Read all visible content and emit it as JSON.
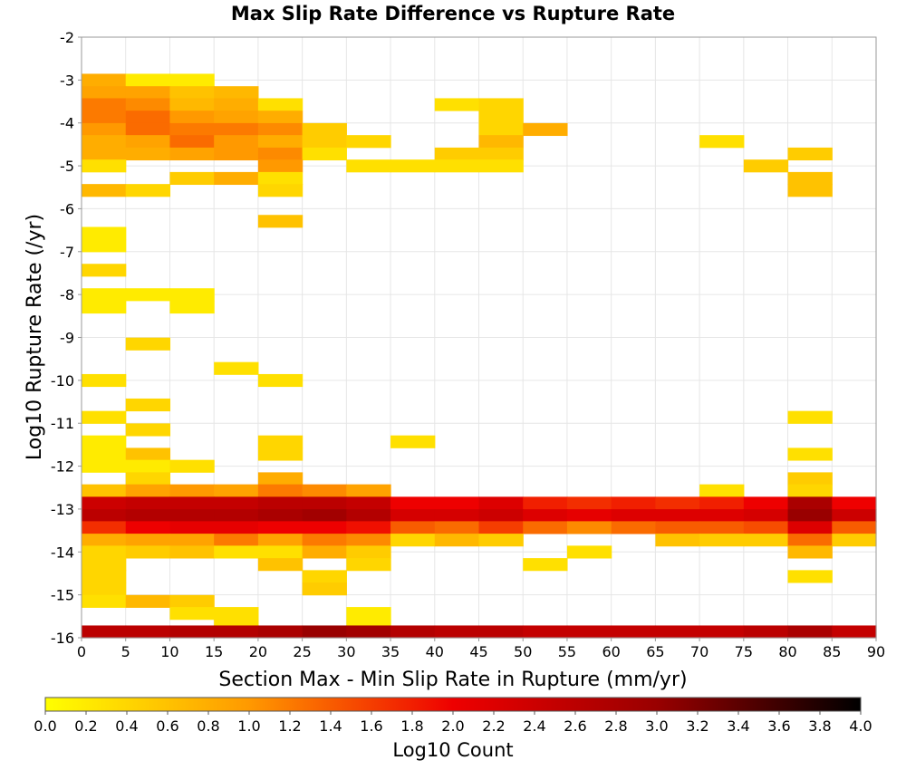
{
  "chart_data": {
    "type": "heatmap",
    "title": "Max Slip Rate Difference vs Rupture Rate",
    "xlabel": "Section Max - Min Slip Rate in Rupture (mm/yr)",
    "ylabel": "Log10 Rupture Rate (/yr)",
    "xlim": [
      0,
      90
    ],
    "ylim": [
      -16,
      -2
    ],
    "x_bin_width": 5,
    "y_bin_width": 0.286,
    "xticks": [
      "0",
      "5",
      "10",
      "15",
      "20",
      "25",
      "30",
      "35",
      "40",
      "45",
      "50",
      "55",
      "60",
      "65",
      "70",
      "75",
      "80",
      "85",
      "90"
    ],
    "yticks": [
      "-2",
      "-3",
      "-4",
      "-5",
      "-6",
      "-7",
      "-8",
      "-9",
      "-10",
      "-11",
      "-12",
      "-13",
      "-14",
      "-15",
      "-16"
    ],
    "grid": true,
    "colorbar": {
      "label": "Log10 Count",
      "range": [
        0,
        4
      ],
      "ticks": [
        "0.0",
        "0.2",
        "0.4",
        "0.6",
        "0.8",
        "1.0",
        "1.2",
        "1.4",
        "1.6",
        "1.8",
        "2.0",
        "2.2",
        "2.4",
        "2.6",
        "2.8",
        "3.0",
        "3.2",
        "3.4",
        "3.6",
        "3.8",
        "4.0"
      ],
      "stops": [
        "#ffff00",
        "#ff9900",
        "#ee0000",
        "#990000",
        "#000000"
      ]
    },
    "cells_columns": [
      "x_start",
      "y_bottom",
      "log10_count"
    ],
    "cells": [
      [
        0,
        -3.14,
        0.8
      ],
      [
        5,
        -3.14,
        0.2
      ],
      [
        10,
        -3.14,
        0.2
      ],
      [
        0,
        -3.43,
        0.9
      ],
      [
        5,
        -3.43,
        0.9
      ],
      [
        10,
        -3.43,
        0.6
      ],
      [
        15,
        -3.43,
        0.7
      ],
      [
        0,
        -3.71,
        1.2
      ],
      [
        5,
        -3.71,
        1.1
      ],
      [
        10,
        -3.71,
        0.7
      ],
      [
        15,
        -3.71,
        0.8
      ],
      [
        20,
        -3.71,
        0.3
      ],
      [
        40,
        -3.71,
        0.3
      ],
      [
        45,
        -3.71,
        0.4
      ],
      [
        0,
        -4.0,
        1.2
      ],
      [
        5,
        -4.0,
        1.3
      ],
      [
        10,
        -4.0,
        1.0
      ],
      [
        15,
        -4.0,
        0.9
      ],
      [
        20,
        -4.0,
        0.8
      ],
      [
        45,
        -4.0,
        0.4
      ],
      [
        0,
        -4.29,
        1.0
      ],
      [
        5,
        -4.29,
        1.3
      ],
      [
        10,
        -4.29,
        1.2
      ],
      [
        15,
        -4.29,
        1.2
      ],
      [
        20,
        -4.29,
        1.1
      ],
      [
        25,
        -4.29,
        0.5
      ],
      [
        45,
        -4.29,
        0.4
      ],
      [
        50,
        -4.29,
        0.8
      ],
      [
        0,
        -4.57,
        0.8
      ],
      [
        5,
        -4.57,
        0.9
      ],
      [
        10,
        -4.57,
        1.3
      ],
      [
        15,
        -4.57,
        1.0
      ],
      [
        20,
        -4.57,
        0.8
      ],
      [
        25,
        -4.57,
        0.5
      ],
      [
        30,
        -4.57,
        0.4
      ],
      [
        45,
        -4.57,
        0.7
      ],
      [
        70,
        -4.57,
        0.3
      ],
      [
        0,
        -4.86,
        0.8
      ],
      [
        5,
        -4.86,
        0.8
      ],
      [
        10,
        -4.86,
        0.9
      ],
      [
        15,
        -4.86,
        1.0
      ],
      [
        20,
        -4.86,
        1.1
      ],
      [
        25,
        -4.86,
        0.3
      ],
      [
        40,
        -4.86,
        0.5
      ],
      [
        45,
        -4.86,
        0.5
      ],
      [
        80,
        -4.86,
        0.5
      ],
      [
        0,
        -5.14,
        0.3
      ],
      [
        20,
        -5.14,
        1.0
      ],
      [
        30,
        -5.14,
        0.3
      ],
      [
        35,
        -5.14,
        0.3
      ],
      [
        40,
        -5.14,
        0.3
      ],
      [
        45,
        -5.14,
        0.3
      ],
      [
        75,
        -5.14,
        0.5
      ],
      [
        10,
        -5.43,
        0.5
      ],
      [
        15,
        -5.43,
        0.8
      ],
      [
        20,
        -5.43,
        0.3
      ],
      [
        80,
        -5.43,
        0.6
      ],
      [
        0,
        -5.71,
        0.7
      ],
      [
        5,
        -5.71,
        0.4
      ],
      [
        20,
        -5.71,
        0.4
      ],
      [
        80,
        -5.71,
        0.6
      ],
      [
        20,
        -6.43,
        0.6
      ],
      [
        0,
        -6.71,
        0.2
      ],
      [
        0,
        -7.0,
        0.2
      ],
      [
        0,
        -7.57,
        0.4
      ],
      [
        0,
        -8.14,
        0.2
      ],
      [
        5,
        -8.14,
        0.2
      ],
      [
        10,
        -8.14,
        0.2
      ],
      [
        0,
        -8.43,
        0.2
      ],
      [
        10,
        -8.43,
        0.2
      ],
      [
        5,
        -9.29,
        0.4
      ],
      [
        15,
        -9.86,
        0.3
      ],
      [
        0,
        -10.14,
        0.3
      ],
      [
        20,
        -10.14,
        0.3
      ],
      [
        5,
        -10.71,
        0.4
      ],
      [
        0,
        -11.0,
        0.3
      ],
      [
        80,
        -11.0,
        0.3
      ],
      [
        5,
        -11.29,
        0.4
      ],
      [
        0,
        -11.57,
        0.2
      ],
      [
        20,
        -11.57,
        0.4
      ],
      [
        35,
        -11.57,
        0.3
      ],
      [
        0,
        -11.86,
        0.2
      ],
      [
        5,
        -11.86,
        0.6
      ],
      [
        20,
        -11.86,
        0.4
      ],
      [
        80,
        -11.86,
        0.3
      ],
      [
        0,
        -12.14,
        0.2
      ],
      [
        5,
        -12.14,
        0.2
      ],
      [
        10,
        -12.14,
        0.3
      ],
      [
        5,
        -12.43,
        0.4
      ],
      [
        20,
        -12.43,
        0.8
      ],
      [
        80,
        -12.43,
        0.5
      ],
      [
        0,
        -12.71,
        0.6
      ],
      [
        5,
        -12.71,
        0.9
      ],
      [
        10,
        -12.71,
        1.0
      ],
      [
        15,
        -12.71,
        0.9
      ],
      [
        20,
        -12.71,
        1.2
      ],
      [
        25,
        -12.71,
        1.1
      ],
      [
        30,
        -12.71,
        0.9
      ],
      [
        70,
        -12.71,
        0.3
      ],
      [
        80,
        -12.71,
        0.4
      ],
      [
        0,
        -13.0,
        2.4
      ],
      [
        5,
        -13.0,
        2.5
      ],
      [
        10,
        -13.0,
        2.5
      ],
      [
        15,
        -13.0,
        2.5
      ],
      [
        20,
        -13.0,
        2.6
      ],
      [
        25,
        -13.0,
        2.6
      ],
      [
        30,
        -13.0,
        2.5
      ],
      [
        35,
        -13.0,
        2.0
      ],
      [
        40,
        -13.0,
        2.0
      ],
      [
        45,
        -13.0,
        2.2
      ],
      [
        50,
        -13.0,
        1.8
      ],
      [
        55,
        -13.0,
        1.7
      ],
      [
        60,
        -13.0,
        1.8
      ],
      [
        65,
        -13.0,
        1.7
      ],
      [
        70,
        -13.0,
        1.8
      ],
      [
        75,
        -13.0,
        2.0
      ],
      [
        80,
        -13.0,
        2.8
      ],
      [
        85,
        -13.0,
        2.0
      ],
      [
        0,
        -13.29,
        2.6
      ],
      [
        5,
        -13.29,
        2.7
      ],
      [
        10,
        -13.29,
        2.7
      ],
      [
        15,
        -13.29,
        2.7
      ],
      [
        20,
        -13.29,
        2.8
      ],
      [
        25,
        -13.29,
        2.9
      ],
      [
        30,
        -13.29,
        2.7
      ],
      [
        35,
        -13.29,
        2.3
      ],
      [
        40,
        -13.29,
        2.3
      ],
      [
        45,
        -13.29,
        2.4
      ],
      [
        50,
        -13.29,
        2.2
      ],
      [
        55,
        -13.29,
        2.1
      ],
      [
        60,
        -13.29,
        2.2
      ],
      [
        65,
        -13.29,
        2.2
      ],
      [
        70,
        -13.29,
        2.2
      ],
      [
        75,
        -13.29,
        2.3
      ],
      [
        80,
        -13.29,
        3.0
      ],
      [
        85,
        -13.29,
        2.4
      ],
      [
        0,
        -13.57,
        1.7
      ],
      [
        5,
        -13.57,
        2.0
      ],
      [
        10,
        -13.57,
        2.1
      ],
      [
        15,
        -13.57,
        2.1
      ],
      [
        20,
        -13.57,
        2.0
      ],
      [
        25,
        -13.57,
        2.0
      ],
      [
        30,
        -13.57,
        1.9
      ],
      [
        35,
        -13.57,
        1.4
      ],
      [
        40,
        -13.57,
        1.3
      ],
      [
        45,
        -13.57,
        1.6
      ],
      [
        50,
        -13.57,
        1.3
      ],
      [
        55,
        -13.57,
        1.1
      ],
      [
        60,
        -13.57,
        1.3
      ],
      [
        65,
        -13.57,
        1.4
      ],
      [
        70,
        -13.57,
        1.4
      ],
      [
        75,
        -13.57,
        1.5
      ],
      [
        80,
        -13.57,
        2.2
      ],
      [
        85,
        -13.57,
        1.4
      ],
      [
        0,
        -13.86,
        0.8
      ],
      [
        5,
        -13.86,
        0.9
      ],
      [
        10,
        -13.86,
        0.9
      ],
      [
        15,
        -13.86,
        1.2
      ],
      [
        20,
        -13.86,
        0.9
      ],
      [
        25,
        -13.86,
        1.2
      ],
      [
        30,
        -13.86,
        1.1
      ],
      [
        35,
        -13.86,
        0.4
      ],
      [
        40,
        -13.86,
        0.7
      ],
      [
        45,
        -13.86,
        0.5
      ],
      [
        65,
        -13.86,
        0.6
      ],
      [
        70,
        -13.86,
        0.5
      ],
      [
        75,
        -13.86,
        0.5
      ],
      [
        80,
        -13.86,
        1.3
      ],
      [
        85,
        -13.86,
        0.5
      ],
      [
        0,
        -14.14,
        0.4
      ],
      [
        5,
        -14.14,
        0.5
      ],
      [
        10,
        -14.14,
        0.6
      ],
      [
        15,
        -14.14,
        0.3
      ],
      [
        20,
        -14.14,
        0.3
      ],
      [
        25,
        -14.14,
        0.8
      ],
      [
        30,
        -14.14,
        0.5
      ],
      [
        55,
        -14.14,
        0.3
      ],
      [
        80,
        -14.14,
        0.7
      ],
      [
        0,
        -14.43,
        0.4
      ],
      [
        20,
        -14.43,
        0.6
      ],
      [
        30,
        -14.43,
        0.4
      ],
      [
        50,
        -14.43,
        0.3
      ],
      [
        0,
        -14.71,
        0.4
      ],
      [
        25,
        -14.71,
        0.4
      ],
      [
        80,
        -14.71,
        0.3
      ],
      [
        0,
        -15.0,
        0.4
      ],
      [
        25,
        -15.0,
        0.5
      ],
      [
        0,
        -15.29,
        0.3
      ],
      [
        5,
        -15.29,
        0.7
      ],
      [
        10,
        -15.29,
        0.5
      ],
      [
        10,
        -15.57,
        0.3
      ],
      [
        15,
        -15.57,
        0.3
      ],
      [
        30,
        -15.57,
        0.2
      ],
      [
        15,
        -15.86,
        0.3
      ],
      [
        30,
        -15.86,
        0.2
      ],
      [
        0,
        -16.0,
        2.6
      ],
      [
        5,
        -16.0,
        2.6
      ],
      [
        10,
        -16.0,
        2.7
      ],
      [
        15,
        -16.0,
        2.7
      ],
      [
        20,
        -16.0,
        2.8
      ],
      [
        25,
        -16.0,
        3.0
      ],
      [
        30,
        -16.0,
        2.9
      ],
      [
        35,
        -16.0,
        2.7
      ],
      [
        40,
        -16.0,
        2.6
      ],
      [
        45,
        -16.0,
        2.6
      ],
      [
        50,
        -16.0,
        2.5
      ],
      [
        55,
        -16.0,
        2.5
      ],
      [
        60,
        -16.0,
        2.5
      ],
      [
        65,
        -16.0,
        2.5
      ],
      [
        70,
        -16.0,
        2.5
      ],
      [
        75,
        -16.0,
        2.6
      ],
      [
        80,
        -16.0,
        2.8
      ],
      [
        85,
        -16.0,
        2.5
      ]
    ]
  }
}
